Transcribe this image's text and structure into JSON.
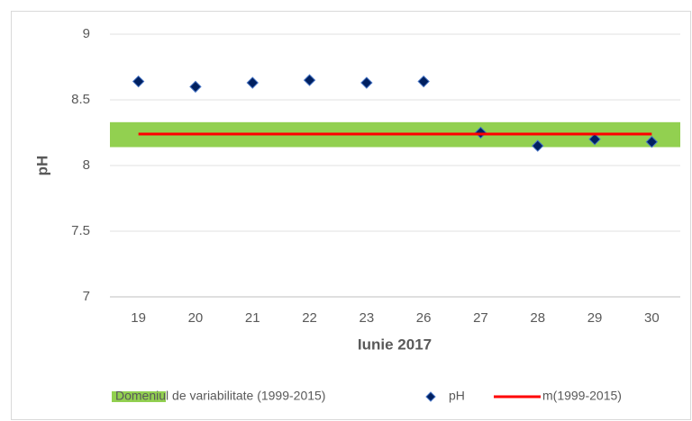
{
  "chart_data": {
    "type": "line",
    "categories": [
      "19",
      "20",
      "21",
      "22",
      "23",
      "26",
      "27",
      "28",
      "29",
      "30"
    ],
    "series": [
      {
        "name": "Domeniul de variabilitate (1999-2015)",
        "kind": "band",
        "color": "#92d050",
        "range": [
          8.14,
          8.33
        ]
      },
      {
        "name": "pH",
        "kind": "marker",
        "color": "#002060",
        "values": [
          8.64,
          8.6,
          8.63,
          8.65,
          8.63,
          8.64,
          8.25,
          8.15,
          8.2,
          8.18
        ]
      },
      {
        "name": "m(1999-2015)",
        "kind": "line",
        "color": "#ff0000",
        "values": [
          8.24,
          8.24,
          8.24,
          8.24,
          8.24,
          8.24,
          8.24,
          8.24,
          8.24,
          8.24
        ]
      }
    ],
    "ylim": [
      7,
      9
    ],
    "yticks": [
      {
        "value": 7,
        "label": "7"
      },
      {
        "value": 7.5,
        "label": "7.5"
      },
      {
        "value": 8,
        "label": "8"
      },
      {
        "value": 8.5,
        "label": "8.5"
      },
      {
        "value": 9,
        "label": "9"
      }
    ],
    "ylabel": "pH",
    "xlabel": "Iunie 2017",
    "grid": true,
    "legend": "bottom"
  }
}
